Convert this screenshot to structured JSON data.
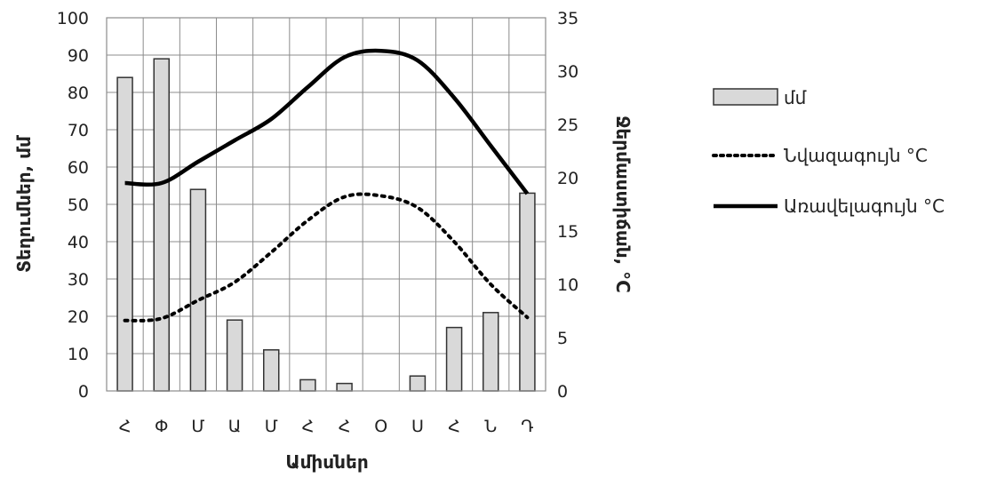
{
  "chart_data": {
    "type": "bar",
    "categories": [
      "Հ",
      "Փ",
      "Մ",
      "Ա",
      "Մ",
      "Հ",
      "Հ",
      "Օ",
      "Ս",
      "Հ",
      "Ն",
      "Դ"
    ],
    "xlabel": "Ամիսներ",
    "ylabel": "Տեղումներ, մմ",
    "y2label": "Ջերմաստիճան, °C",
    "ylim": [
      0,
      100
    ],
    "y2lim": [
      0,
      35
    ],
    "yticks": [
      0,
      10,
      20,
      30,
      40,
      50,
      60,
      70,
      80,
      90,
      100
    ],
    "y2ticks": [
      0,
      5,
      10,
      15,
      20,
      25,
      30,
      35
    ],
    "grid": true,
    "legend_position": "right",
    "series": [
      {
        "name": "մմ",
        "type": "bar",
        "axis": "left",
        "color": "#d9d9d9",
        "values": [
          84,
          89,
          54,
          19,
          11,
          3,
          2,
          0,
          4,
          17,
          21,
          53
        ]
      },
      {
        "name": "Նվազագույն °C",
        "type": "line",
        "axis": "right",
        "style": "dotted",
        "color": "#000000",
        "values": [
          6.6,
          6.8,
          8.5,
          10.2,
          13.0,
          16.0,
          18.2,
          18.3,
          17.2,
          14.0,
          10.0,
          6.9
        ]
      },
      {
        "name": "Առավելագույն °C",
        "type": "line",
        "axis": "right",
        "style": "solid",
        "color": "#000000",
        "values": [
          19.5,
          19.5,
          21.5,
          23.5,
          25.5,
          28.5,
          31.3,
          31.9,
          31.0,
          27.5,
          23.0,
          18.5
        ]
      }
    ]
  }
}
